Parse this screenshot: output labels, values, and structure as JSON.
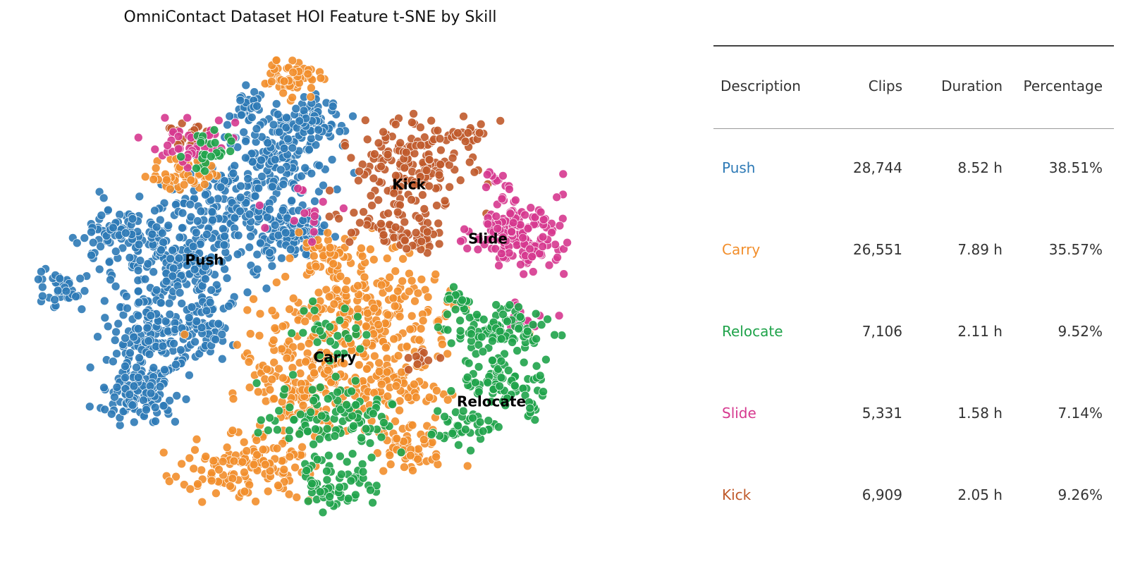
{
  "chart_data": {
    "type": "scatter",
    "title": "OmniContact Dataset HOI Feature t-SNE by Skill",
    "xlabel": "",
    "ylabel": "",
    "axes_visible": false,
    "grid": false,
    "legend": "none",
    "series": [
      {
        "name": "Push",
        "color": "#2e7ab6"
      },
      {
        "name": "Carry",
        "color": "#f28e2b"
      },
      {
        "name": "Relocate",
        "color": "#1fa34a"
      },
      {
        "name": "Slide",
        "color": "#d6398f"
      },
      {
        "name": "Kick",
        "color": "#c05a2b"
      }
    ],
    "cluster_labels": [
      {
        "text": "Push",
        "x": 290,
        "y": 370
      },
      {
        "text": "Kick",
        "x": 580,
        "y": 263
      },
      {
        "text": "Slide",
        "x": 692,
        "y": 340
      },
      {
        "text": "Carry",
        "x": 475,
        "y": 508
      },
      {
        "text": "Relocate",
        "x": 697,
        "y": 571
      }
    ]
  },
  "table": {
    "headers": [
      "Description",
      "Clips",
      "Duration",
      "Percentage"
    ],
    "rows": [
      {
        "description": "Push",
        "clips": "28,744",
        "duration": "8.52 h",
        "percentage": "38.51%",
        "color": "#2e7ab6"
      },
      {
        "description": "Carry",
        "clips": "26,551",
        "duration": "7.89 h",
        "percentage": "35.57%",
        "color": "#f28e2b"
      },
      {
        "description": "Relocate",
        "clips": "7,106",
        "duration": "2.11 h",
        "percentage": "9.52%",
        "color": "#1fa34a"
      },
      {
        "description": "Slide",
        "clips": "5,331",
        "duration": "1.58 h",
        "percentage": "7.14%",
        "color": "#d6398f"
      },
      {
        "description": "Kick",
        "clips": "6,909",
        "duration": "2.05 h",
        "percentage": "9.26%",
        "color": "#c05a2b"
      }
    ]
  }
}
